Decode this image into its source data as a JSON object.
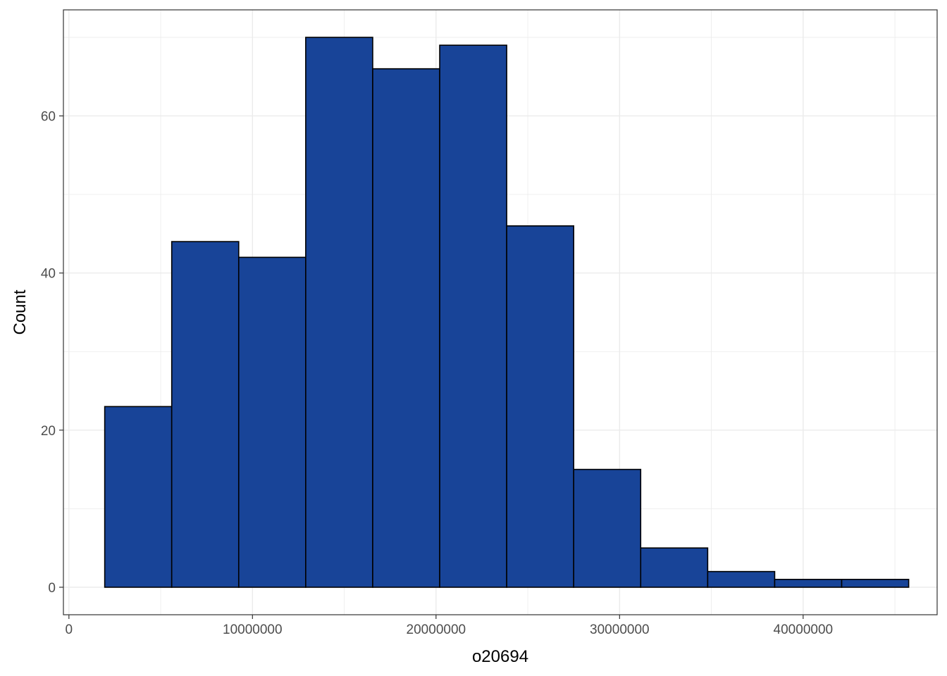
{
  "chart_data": {
    "type": "bar",
    "subtype": "histogram",
    "xlabel": "o20694",
    "ylabel": "Count",
    "xlim": [
      -300000,
      47300000
    ],
    "ylim": [
      -3.5,
      73.5
    ],
    "x_ticks": [
      0,
      10000000,
      20000000,
      30000000,
      40000000
    ],
    "x_tick_labels": [
      "0",
      "10000000",
      "20000000",
      "30000000",
      "40000000"
    ],
    "y_ticks": [
      0,
      20,
      40,
      60
    ],
    "y_tick_labels": [
      "0",
      "20",
      "40",
      "60"
    ],
    "grid": true,
    "bin_edges": [
      1950000,
      5600000,
      9250000,
      12900000,
      16550000,
      20200000,
      23850000,
      27500000,
      31150000,
      34800000,
      38450000,
      42100000,
      45750000
    ],
    "values": [
      23,
      44,
      42,
      70,
      66,
      69,
      46,
      15,
      5,
      2,
      1,
      1
    ],
    "colors": {
      "bar_fill": "#184498",
      "bar_stroke": "#000000",
      "grid": "#ebebeb",
      "panel_border": "#333333"
    }
  }
}
